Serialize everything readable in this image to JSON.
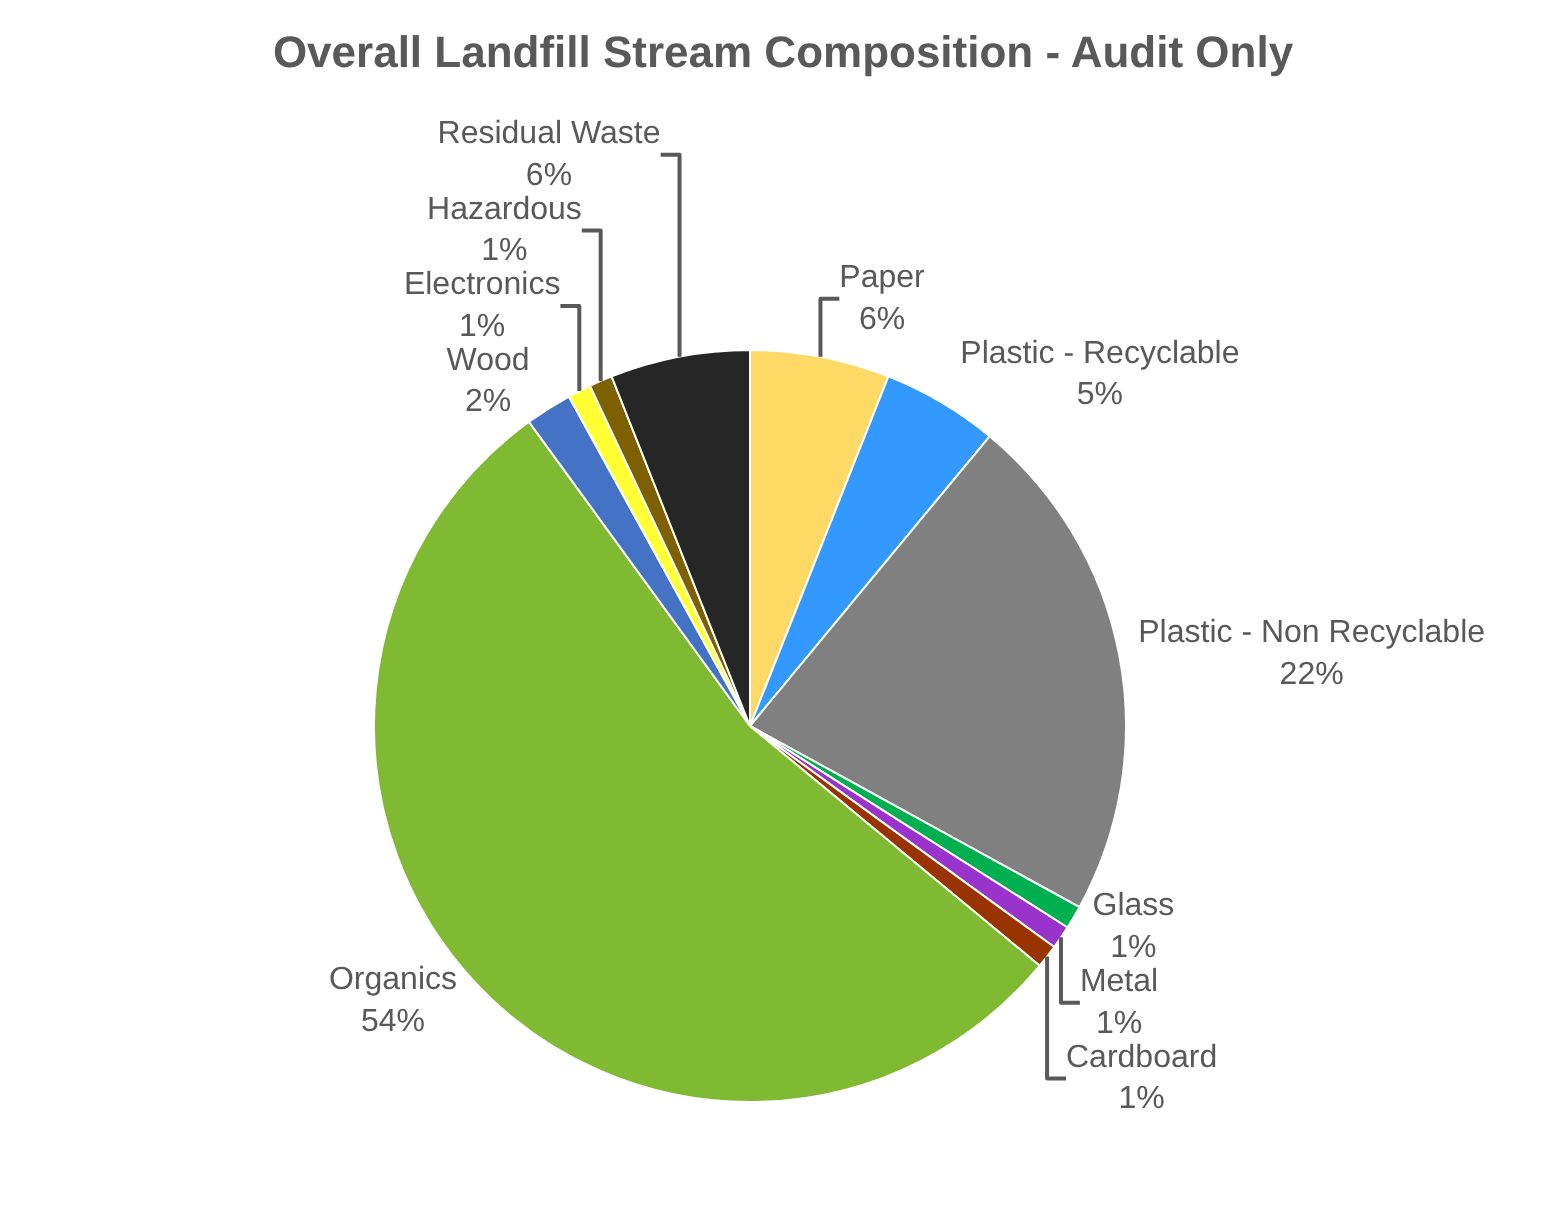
{
  "chart_data": {
    "type": "pie",
    "title": "Overall Landfill Stream Composition - Audit Only",
    "categories": [
      "Paper",
      "Plastic - Recyclable",
      "Plastic - Non Recyclable",
      "Glass",
      "Metal",
      "Cardboard",
      "Organics",
      "Wood",
      "Electronics",
      "Hazardous",
      "Residual Waste"
    ],
    "values": [
      6,
      5,
      22,
      1,
      1,
      1,
      54,
      2,
      1,
      1,
      6
    ],
    "value_labels": [
      "6%",
      "5%",
      "22%",
      "1%",
      "1%",
      "1%",
      "54%",
      "2%",
      "1%",
      "1%",
      "6%"
    ],
    "colors": [
      "#ffd966",
      "#3399ff",
      "#808080",
      "#00b050",
      "#9933cc",
      "#993300",
      "#7fba32",
      "#4472c4",
      "#ffff33",
      "#7f6000",
      "#262626"
    ],
    "legend": false
  }
}
